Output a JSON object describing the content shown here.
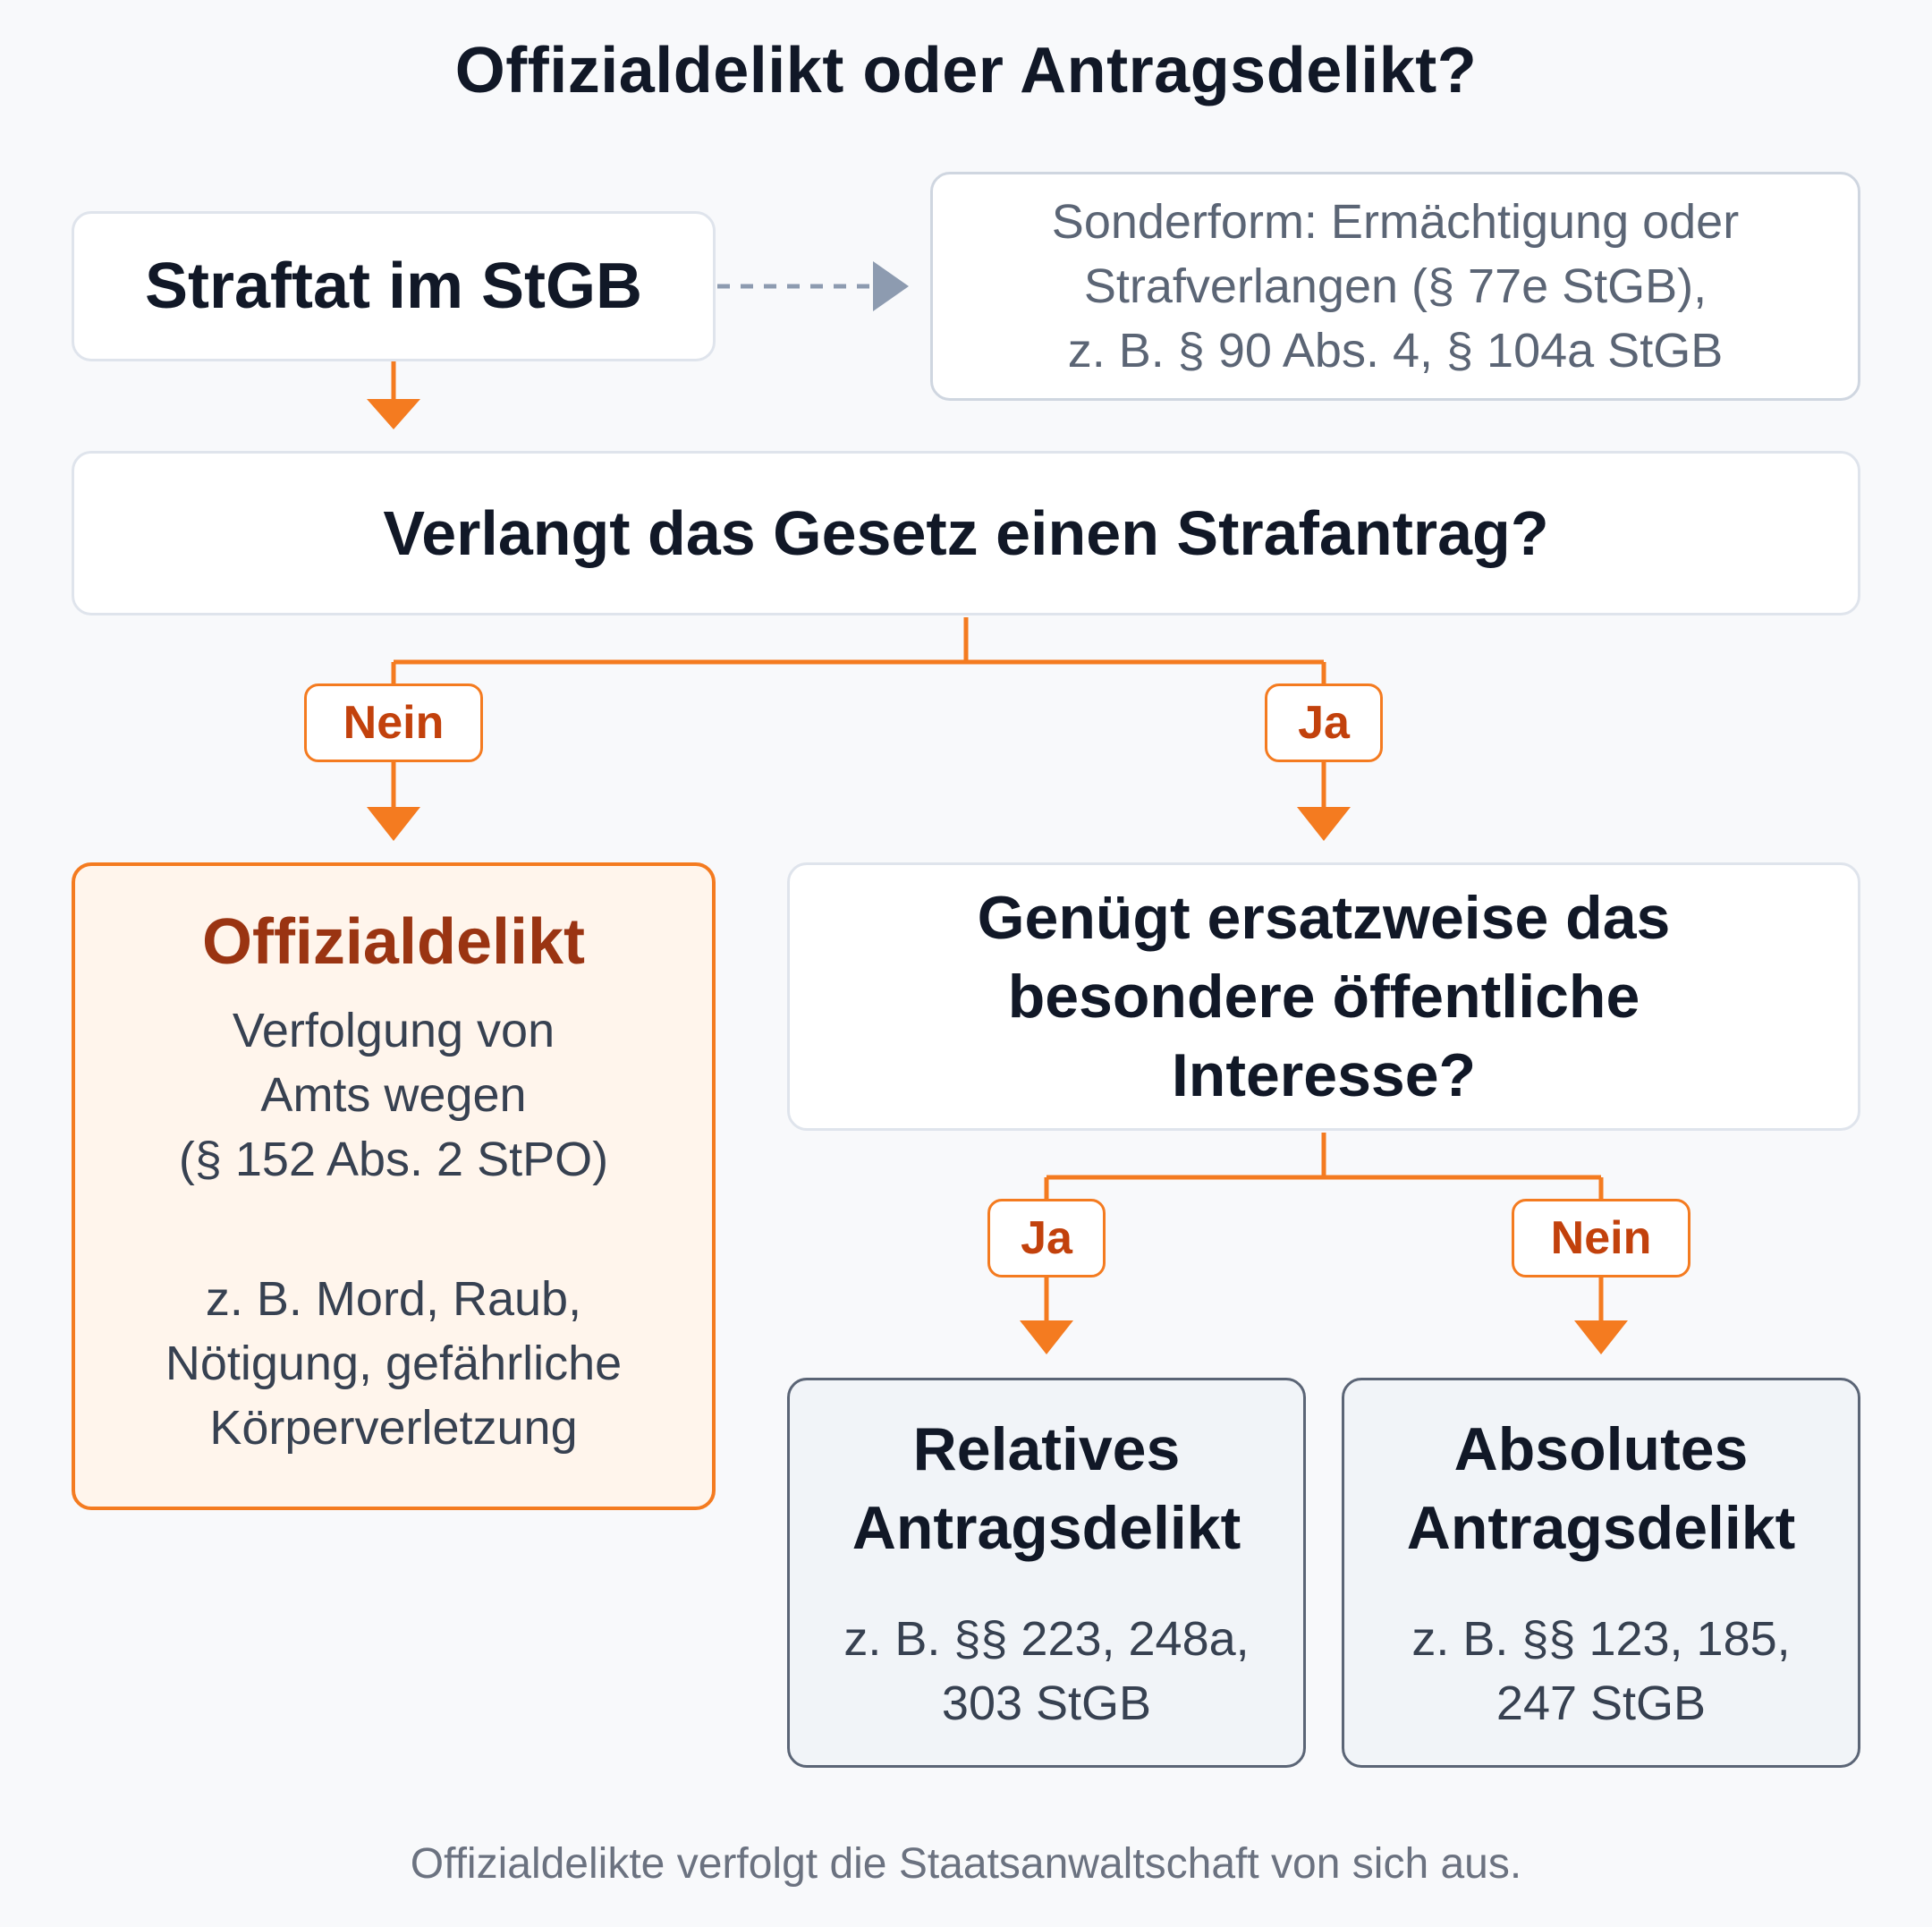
{
  "title": "Offizialdelikt oder Antragsdelikt?",
  "start": {
    "label": "Straftat im StGB"
  },
  "note": {
    "text": "Sonderform: Ermächtigung oder\nStrafverlangen (§ 77e StGB),\nz. B. § 90 Abs. 4, § 104a StGB"
  },
  "question1": {
    "text": "Verlangt das Gesetz einen Strafantrag?"
  },
  "question2": {
    "text": "Genügt ersatzweise das\nbesondere öffentliche\nInteresse?"
  },
  "labels": {
    "no1": "Nein",
    "yes1": "Ja",
    "yes2": "Ja",
    "no2": "Nein"
  },
  "offizialdelikt": {
    "title": "Offizialdelikt",
    "description": "Verfolgung von\nAmts wegen\n(§ 152 Abs. 2 StPO)",
    "examples": "z. B. Mord, Raub,\nNötigung, gefährliche\nKörperverletzung"
  },
  "relatives": {
    "title": "Relatives\nAntragsdelikt",
    "examples": "z. B. §§ 223, 248a,\n303 StGB"
  },
  "absolutes": {
    "title": "Absolutes\nAntragsdelikt",
    "examples": "z. B. §§ 123, 185,\n247 StGB"
  },
  "footer": "Offizialdelikte verfolgt die Staatsanwaltschaft von sich aus.",
  "colors": {
    "accent": "#f47b20",
    "accent_text": "#c2410c",
    "offizial_title": "#9a3412",
    "dashed_arrow": "#8d9bb0",
    "background": "#f8f9fb"
  }
}
